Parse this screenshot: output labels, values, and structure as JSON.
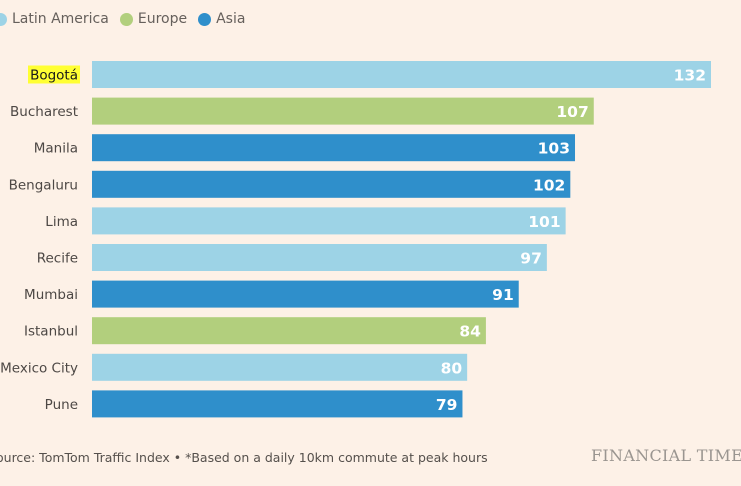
{
  "chart_data": {
    "type": "bar",
    "orientation": "horizontal",
    "title": "",
    "xlabel": "",
    "ylabel": "",
    "xlim": [
      0,
      132
    ],
    "grid": false,
    "legend_position": "top-left",
    "legend": [
      {
        "name": "Latin America",
        "color": "#9dd3e6"
      },
      {
        "name": "Europe",
        "color": "#b2cf7d"
      },
      {
        "name": "Asia",
        "color": "#2f8fcb"
      }
    ],
    "categories": [
      "Bogotá",
      "Bucharest",
      "Manila",
      "Bengaluru",
      "Lima",
      "Recife",
      "Mumbai",
      "Istanbul",
      "Mexico City",
      "Pune"
    ],
    "values": [
      132,
      107,
      103,
      102,
      101,
      97,
      91,
      84,
      80,
      79
    ],
    "regions": [
      "Latin America",
      "Europe",
      "Asia",
      "Asia",
      "Latin America",
      "Latin America",
      "Asia",
      "Europe",
      "Latin America",
      "Asia"
    ],
    "highlighted_category": "Bogotá",
    "highlight_color": "#ffff33"
  },
  "footer": {
    "source": "ource: TomTom Traffic Index • *Based on a daily 10km commute at peak hours",
    "brand": "FINANCIAL TIME"
  }
}
